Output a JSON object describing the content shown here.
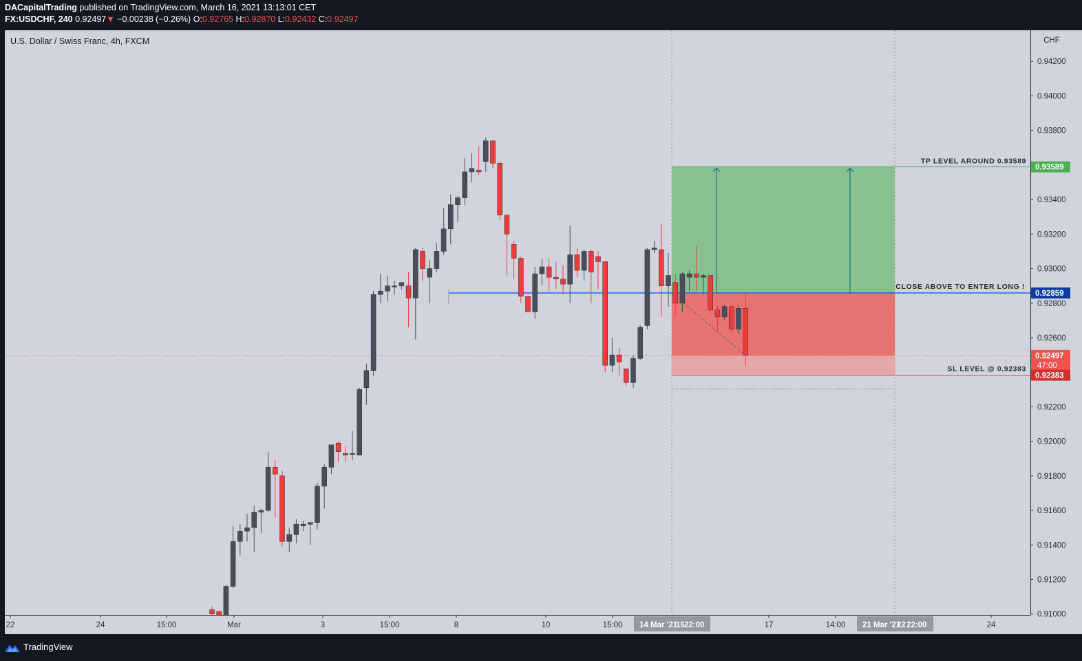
{
  "header": {
    "author": "DACapitalTrading",
    "published": " published on TradingView.com, March 16, 2021 13:13:01 CET",
    "symbol": "FX:USDCHF, 240",
    "last": " 0.92497",
    "arrow": "▼",
    "change": " −0.00238 (−0.26%)",
    "o_label": " O:",
    "o_value": "0.92765",
    "h_label": " H:",
    "h_value": "0.92870",
    "l_label": " L:",
    "l_value": "0.92432",
    "c_label": " C:",
    "c_value": "0.92497"
  },
  "footer": {
    "brand": "TradingView"
  },
  "colors": {
    "background": "#d1d4dc",
    "up": "#4a4e5a",
    "down": "#ef3b3b",
    "profit": "#4caf50",
    "loss": "#ef5350",
    "entry": "#2962ff",
    "entry_tag": "#0c3c9e",
    "frame": "#131722"
  },
  "chart_data": {
    "type": "candlestick",
    "title": "U.S. Dollar / Swiss Franc, 4h, FXCM",
    "currency": "CHF",
    "ylim": [
      0.90995,
      0.9438
    ],
    "y_ticks": [
      "0.94200",
      "0.94000",
      "0.93800",
      "0.93600",
      "0.93400",
      "0.93200",
      "0.93000",
      "0.92800",
      "0.92600",
      "0.92400",
      "0.92200",
      "0.92000",
      "0.91800",
      "0.91600",
      "0.91400",
      "0.91200",
      "0.91000"
    ],
    "x_ticks": [
      "22",
      "24",
      "15:00",
      "Mar",
      "3",
      "15:00",
      "8",
      "10",
      "15:00",
      "17",
      "14:00",
      "24"
    ],
    "x_highlights": [
      "14 Mar '21",
      "15",
      "22:00",
      "21 Mar '21",
      "22",
      "22:00"
    ],
    "candles": [
      [
        0.91025,
        0.91045,
        0.90995,
        0.91
      ],
      [
        0.91015,
        0.9102,
        0.90995,
        0.90995
      ],
      [
        0.90995,
        0.9117,
        0.90995,
        0.9116
      ],
      [
        0.9116,
        0.9151,
        0.9115,
        0.9142
      ],
      [
        0.9142,
        0.9152,
        0.9134,
        0.9148
      ],
      [
        0.9148,
        0.9158,
        0.9142,
        0.915
      ],
      [
        0.915,
        0.9163,
        0.9136,
        0.9159
      ],
      [
        0.9159,
        0.9161,
        0.9147,
        0.916
      ],
      [
        0.916,
        0.9194,
        0.9159,
        0.9185
      ],
      [
        0.9185,
        0.9189,
        0.9156,
        0.9181
      ],
      [
        0.918,
        0.9183,
        0.9139,
        0.9142
      ],
      [
        0.9142,
        0.915,
        0.9136,
        0.9146
      ],
      [
        0.9146,
        0.9155,
        0.9141,
        0.9152
      ],
      [
        0.9151,
        0.9154,
        0.9148,
        0.9152
      ],
      [
        0.9152,
        0.9152,
        0.914,
        0.9153
      ],
      [
        0.9153,
        0.9176,
        0.9149,
        0.9174
      ],
      [
        0.9174,
        0.9187,
        0.9161,
        0.9185
      ],
      [
        0.9185,
        0.9197,
        0.9181,
        0.9198
      ],
      [
        0.9199,
        0.92,
        0.9188,
        0.9194
      ],
      [
        0.9193,
        0.9197,
        0.9188,
        0.9192
      ],
      [
        0.9193,
        0.9206,
        0.9189,
        0.9193
      ],
      [
        0.9192,
        0.9231,
        0.9192,
        0.923
      ],
      [
        0.9231,
        0.9245,
        0.9221,
        0.9241
      ],
      [
        0.9241,
        0.9287,
        0.9238,
        0.9285
      ],
      [
        0.9285,
        0.9297,
        0.928,
        0.9287
      ],
      [
        0.9287,
        0.9296,
        0.9281,
        0.929
      ],
      [
        0.929,
        0.9293,
        0.9285,
        0.929
      ],
      [
        0.929,
        0.9292,
        0.9288,
        0.9292
      ],
      [
        0.929,
        0.9298,
        0.9266,
        0.9283
      ],
      [
        0.9283,
        0.9312,
        0.9259,
        0.9311
      ],
      [
        0.931,
        0.9312,
        0.9293,
        0.93
      ],
      [
        0.9295,
        0.9305,
        0.928,
        0.93
      ],
      [
        0.93,
        0.9315,
        0.9298,
        0.931
      ],
      [
        0.931,
        0.9335,
        0.9308,
        0.9323
      ],
      [
        0.9323,
        0.9343,
        0.9314,
        0.9337
      ],
      [
        0.9337,
        0.9342,
        0.9327,
        0.9341
      ],
      [
        0.9341,
        0.9364,
        0.9337,
        0.9356
      ],
      [
        0.9356,
        0.9367,
        0.935,
        0.9358
      ],
      [
        0.9357,
        0.9371,
        0.9354,
        0.9356
      ],
      [
        0.9362,
        0.9376,
        0.9356,
        0.9374
      ],
      [
        0.9374,
        0.9374,
        0.9358,
        0.9361
      ],
      [
        0.9361,
        0.9362,
        0.9328,
        0.9331
      ],
      [
        0.9331,
        0.933,
        0.9296,
        0.932
      ],
      [
        0.9314,
        0.9316,
        0.9294,
        0.9306
      ],
      [
        0.9306,
        0.9307,
        0.928,
        0.9284
      ],
      [
        0.9284,
        0.9284,
        0.9275,
        0.9275
      ],
      [
        0.9275,
        0.9301,
        0.9271,
        0.9297
      ],
      [
        0.9297,
        0.9306,
        0.929,
        0.9301
      ],
      [
        0.9301,
        0.9306,
        0.9287,
        0.9295
      ],
      [
        0.9295,
        0.9304,
        0.9288,
        0.9294
      ],
      [
        0.9294,
        0.9302,
        0.9285,
        0.9291
      ],
      [
        0.9291,
        0.9325,
        0.928,
        0.9308
      ],
      [
        0.9308,
        0.9312,
        0.9295,
        0.9299
      ],
      [
        0.9299,
        0.9311,
        0.9293,
        0.931
      ],
      [
        0.931,
        0.9311,
        0.928,
        0.9298
      ],
      [
        0.9307,
        0.931,
        0.9288,
        0.9304
      ],
      [
        0.9304,
        0.9304,
        0.924,
        0.9244
      ],
      [
        0.9244,
        0.926,
        0.924,
        0.925
      ],
      [
        0.925,
        0.9254,
        0.9238,
        0.9246
      ],
      [
        0.9242,
        0.9242,
        0.9232,
        0.9234
      ],
      [
        0.9234,
        0.925,
        0.9231,
        0.9248
      ],
      [
        0.9248,
        0.9267,
        0.9247,
        0.9266
      ],
      [
        0.9267,
        0.9312,
        0.9265,
        0.9311
      ],
      [
        0.9311,
        0.9316,
        0.9309,
        0.9312
      ],
      [
        0.9311,
        0.9326,
        0.9272,
        0.929
      ],
      [
        0.929,
        0.9309,
        0.9278,
        0.9296
      ],
      [
        0.9292,
        0.9297,
        0.9272,
        0.928
      ],
      [
        0.928,
        0.9298,
        0.9275,
        0.9297
      ],
      [
        0.9295,
        0.9299,
        0.9287,
        0.9297
      ],
      [
        0.9297,
        0.9313,
        0.9287,
        0.9295
      ],
      [
        0.9295,
        0.9297,
        0.9285,
        0.9296
      ],
      [
        0.9296,
        0.9295,
        0.9274,
        0.9276
      ],
      [
        0.9276,
        0.9279,
        0.9263,
        0.9272
      ],
      [
        0.9272,
        0.9279,
        0.927,
        0.9278
      ],
      [
        0.9278,
        0.9279,
        0.9263,
        0.9265
      ],
      [
        0.9265,
        0.9279,
        0.9262,
        0.9277
      ],
      [
        0.9277,
        0.9286,
        0.9244,
        0.925
      ]
    ],
    "position": {
      "entry": 0.92859,
      "take_profit": 0.93589,
      "stop_loss": 0.92383
    },
    "labels": {
      "tp": "TP LEVEL AROUND 0.93589",
      "entry": "CLOSE ABOVE TO ENTER LONG !",
      "sl": "SL LEVEL @ 0.92383"
    },
    "price_tags": {
      "tp": "0.93589",
      "entry": "0.92859",
      "last": "0.92497",
      "countdown": "47:00",
      "sl": "0.92383"
    },
    "current_price": 0.92497
  }
}
